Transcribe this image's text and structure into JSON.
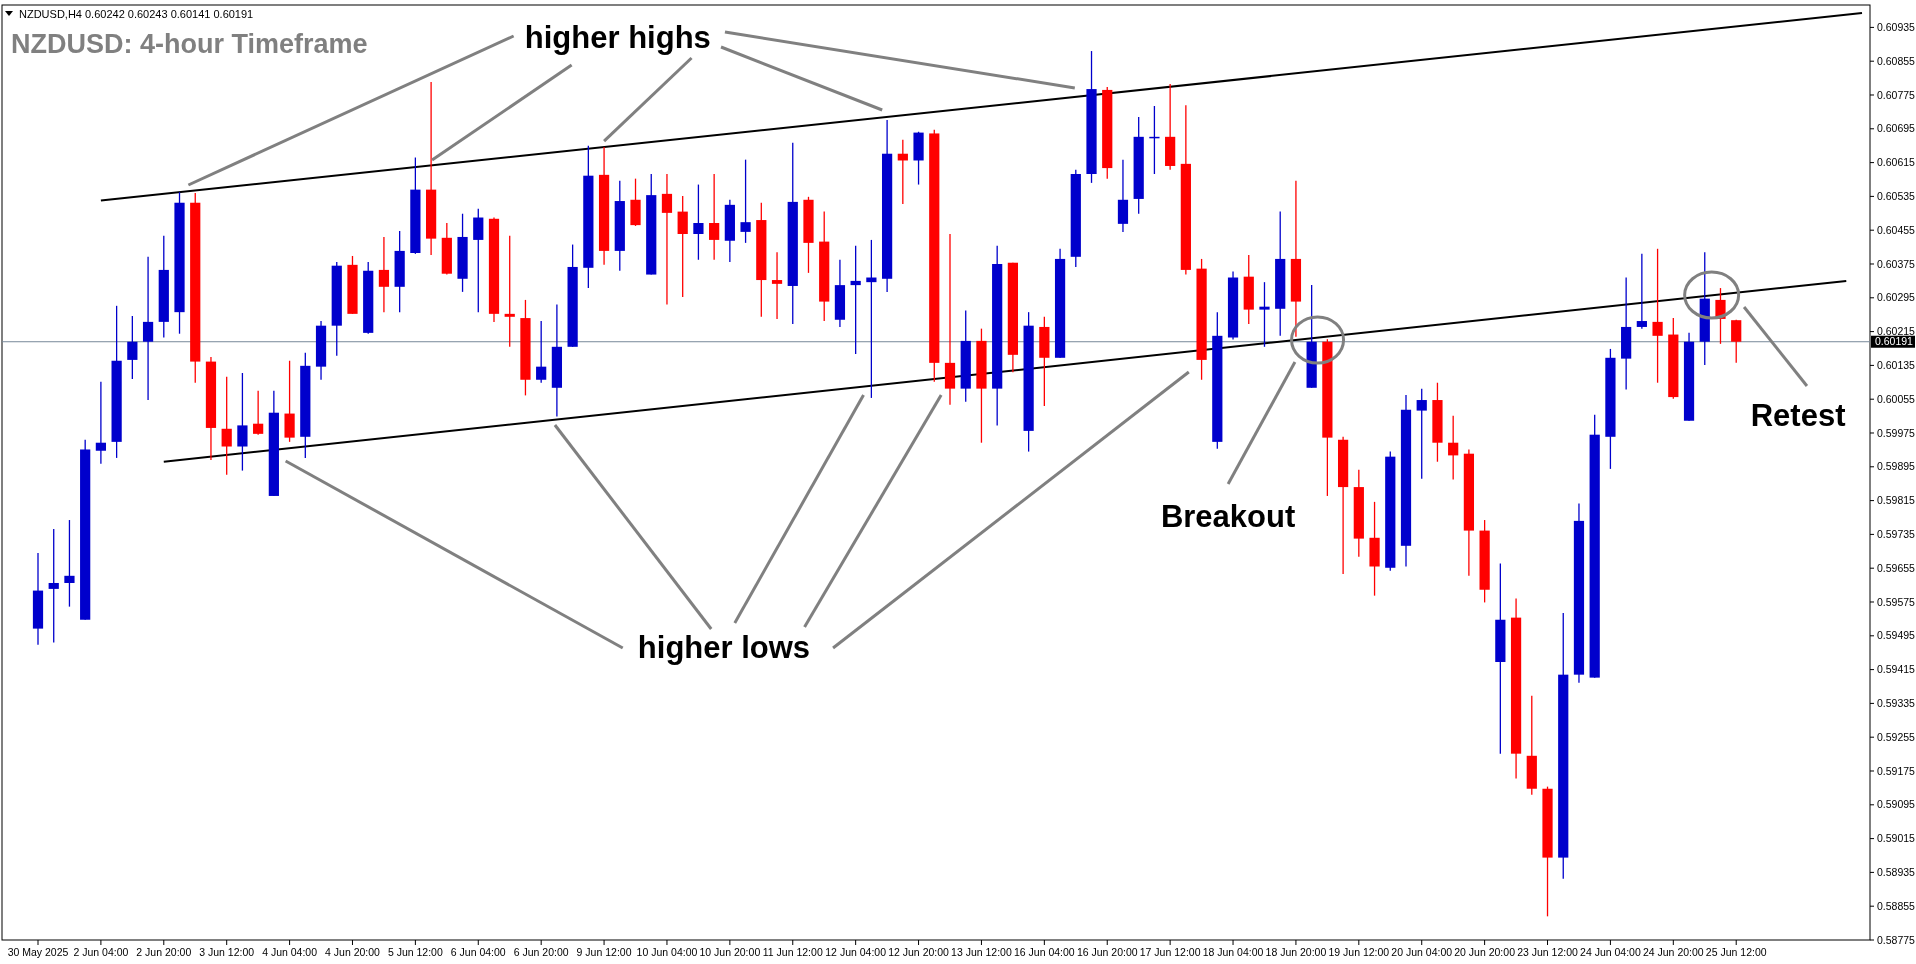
{
  "chart_data": {
    "type": "candlestick",
    "title": "NZDUSD: 4-hour Timeframe",
    "categories": [
      "30 May 2025",
      null,
      null,
      null,
      "2 Jun 04:00",
      null,
      null,
      null,
      "2 Jun 20:00",
      null,
      null,
      null,
      "3 Jun 12:00",
      null,
      null,
      null,
      "4 Jun 04:00",
      null,
      null,
      null,
      "4 Jun 20:00",
      null,
      null,
      null,
      "5 Jun 12:00",
      null,
      null,
      null,
      "6 Jun 04:00",
      null,
      null,
      null,
      "6 Jun 20:00",
      null,
      null,
      null,
      "9 Jun 12:00",
      null,
      null,
      null,
      "10 Jun 04:00",
      null,
      null,
      null,
      "10 Jun 20:00",
      null,
      null,
      null,
      "11 Jun 12:00",
      null,
      null,
      null,
      "12 Jun 04:00",
      null,
      null,
      null,
      "12 Jun 20:00",
      null,
      null,
      null,
      "13 Jun 12:00",
      null,
      null,
      null,
      "16 Jun 04:00",
      null,
      null,
      null,
      "16 Jun 20:00",
      null,
      null,
      null,
      "17 Jun 12:00",
      null,
      null,
      null,
      "18 Jun 04:00",
      null,
      null,
      null,
      "18 Jun 20:00",
      null,
      null,
      null,
      "19 Jun 12:00",
      null,
      null,
      null,
      "20 Jun 04:00",
      null,
      null,
      null,
      "20 Jun 20:00",
      null,
      null,
      null,
      "23 Jun 12:00",
      null,
      null,
      null,
      "24 Jun 04:00",
      null,
      null,
      null,
      "24 Jun 20:00",
      null,
      null,
      null,
      "25 Jun 12:00",
      null,
      null,
      null,
      null,
      null,
      null,
      null,
      null
    ],
    "ohlc": [
      [
        0.59512,
        0.59691,
        0.59474,
        0.59602
      ],
      [
        0.59606,
        0.59748,
        0.59479,
        0.5962
      ],
      [
        0.5962,
        0.59769,
        0.59564,
        0.59637
      ],
      [
        0.59533,
        0.59959,
        0.59533,
        0.59936
      ],
      [
        0.59933,
        0.60096,
        0.59902,
        0.59952
      ],
      [
        0.59954,
        0.60276,
        0.59916,
        0.60146
      ],
      [
        0.60148,
        0.60252,
        0.60103,
        0.60191
      ],
      [
        0.60191,
        0.60392,
        0.60053,
        0.60238
      ],
      [
        0.60238,
        0.60442,
        0.60201,
        0.60361
      ],
      [
        0.60261,
        0.60545,
        0.6021,
        0.6052
      ],
      [
        0.6052,
        0.60543,
        0.60094,
        0.60144
      ],
      [
        0.60144,
        0.60155,
        0.59911,
        0.59987
      ],
      [
        0.59985,
        0.60108,
        0.59876,
        0.59943
      ],
      [
        0.59943,
        0.60117,
        0.59886,
        0.59993
      ],
      [
        0.59997,
        0.60075,
        0.59971,
        0.59973
      ],
      [
        0.59826,
        0.60075,
        0.59826,
        0.60023
      ],
      [
        0.60021,
        0.60146,
        0.59954,
        0.59964
      ],
      [
        0.59966,
        0.60165,
        0.59916,
        0.60134
      ],
      [
        0.60132,
        0.6024,
        0.60101,
        0.60229
      ],
      [
        0.60229,
        0.6038,
        0.60158,
        0.60371
      ],
      [
        0.60373,
        0.60394,
        0.60257,
        0.60257
      ],
      [
        0.60212,
        0.6038,
        0.6021,
        0.60359
      ],
      [
        0.60361,
        0.60439,
        0.60261,
        0.60321
      ],
      [
        0.60321,
        0.60453,
        0.60261,
        0.60406
      ],
      [
        0.60401,
        0.60627,
        0.60399,
        0.60551
      ],
      [
        0.60551,
        0.60806,
        0.60396,
        0.60435
      ],
      [
        0.60437,
        0.60472,
        0.6035,
        0.60352
      ],
      [
        0.6034,
        0.60494,
        0.60309,
        0.60439
      ],
      [
        0.60432,
        0.60506,
        0.60261,
        0.60485
      ],
      [
        0.60482,
        0.60485,
        0.60238,
        0.60257
      ],
      [
        0.60257,
        0.60442,
        0.60179,
        0.6025
      ],
      [
        0.60247,
        0.6029,
        0.60064,
        0.60101
      ],
      [
        0.60101,
        0.6024,
        0.60094,
        0.60132
      ],
      [
        0.60082,
        0.60279,
        0.60014,
        0.60179
      ],
      [
        0.60179,
        0.60421,
        0.60179,
        0.60368
      ],
      [
        0.60366,
        0.60655,
        0.60318,
        0.60584
      ],
      [
        0.60586,
        0.60652,
        0.60373,
        0.60406
      ],
      [
        0.60406,
        0.60572,
        0.60359,
        0.60524
      ],
      [
        0.60527,
        0.60577,
        0.60465,
        0.60467
      ],
      [
        0.6035,
        0.60588,
        0.6035,
        0.60538
      ],
      [
        0.60541,
        0.60588,
        0.60279,
        0.60496
      ],
      [
        0.60499,
        0.60536,
        0.60297,
        0.60446
      ],
      [
        0.60446,
        0.60563,
        0.60385,
        0.60472
      ],
      [
        0.60472,
        0.60588,
        0.60385,
        0.60432
      ],
      [
        0.6043,
        0.60527,
        0.6038,
        0.60515
      ],
      [
        0.60451,
        0.60622,
        0.60425,
        0.60474
      ],
      [
        0.60479,
        0.6052,
        0.6025,
        0.60337
      ],
      [
        0.60337,
        0.60403,
        0.60245,
        0.60328
      ],
      [
        0.60323,
        0.60662,
        0.60233,
        0.60522
      ],
      [
        0.60527,
        0.60534,
        0.60354,
        0.60425
      ],
      [
        0.60428,
        0.60499,
        0.6024,
        0.60286
      ],
      [
        0.60243,
        0.60385,
        0.60226,
        0.60325
      ],
      [
        0.60325,
        0.60418,
        0.60162,
        0.60335
      ],
      [
        0.60332,
        0.60432,
        0.60058,
        0.60343
      ],
      [
        0.6034,
        0.60716,
        0.60309,
        0.60636
      ],
      [
        0.60636,
        0.60669,
        0.60517,
        0.6062
      ],
      [
        0.6062,
        0.60688,
        0.60563,
        0.60686
      ],
      [
        0.60684,
        0.60693,
        0.60096,
        0.60141
      ],
      [
        0.60141,
        0.60446,
        0.60042,
        0.6008
      ],
      [
        0.6008,
        0.60265,
        0.60049,
        0.60193
      ],
      [
        0.60193,
        0.60222,
        0.59952,
        0.6008
      ],
      [
        0.6008,
        0.60418,
        0.59993,
        0.60375
      ],
      [
        0.60378,
        0.60378,
        0.60119,
        0.6016
      ],
      [
        0.5998,
        0.60261,
        0.59931,
        0.60229
      ],
      [
        0.60226,
        0.6025,
        0.60039,
        0.60153
      ],
      [
        0.60153,
        0.60411,
        0.60153,
        0.60387
      ],
      [
        0.60392,
        0.60598,
        0.60368,
        0.60588
      ],
      [
        0.60588,
        0.60879,
        0.60567,
        0.60789
      ],
      [
        0.60787,
        0.60794,
        0.60577,
        0.60602
      ],
      [
        0.6047,
        0.60622,
        0.60451,
        0.60527
      ],
      [
        0.60529,
        0.60723,
        0.60494,
        0.60676
      ],
      [
        0.60673,
        0.60749,
        0.60588,
        0.60676
      ],
      [
        0.60676,
        0.60801,
        0.60598,
        0.60607
      ],
      [
        0.60612,
        0.60751,
        0.6035,
        0.60361
      ],
      [
        0.60364,
        0.60387,
        0.60101,
        0.60148
      ],
      [
        0.59954,
        0.60261,
        0.59938,
        0.60205
      ],
      [
        0.60201,
        0.60357,
        0.60196,
        0.60343
      ],
      [
        0.60345,
        0.60396,
        0.60233,
        0.60267
      ],
      [
        0.60267,
        0.60332,
        0.60179,
        0.60274
      ],
      [
        0.60269,
        0.60499,
        0.60205,
        0.60387
      ],
      [
        0.60387,
        0.60572,
        0.60203,
        0.60286
      ],
      [
        0.60082,
        0.60325,
        0.60082,
        0.60191
      ],
      [
        0.60191,
        0.60197,
        0.59826,
        0.59964
      ],
      [
        0.59959,
        0.59966,
        0.59641,
        0.59847
      ],
      [
        0.59847,
        0.59888,
        0.59682,
        0.59725
      ],
      [
        0.59727,
        0.59812,
        0.5959,
        0.59659
      ],
      [
        0.59656,
        0.59931,
        0.59649,
        0.59919
      ],
      [
        0.59708,
        0.60065,
        0.59659,
        0.6003
      ],
      [
        0.60028,
        0.6008,
        0.59867,
        0.60053
      ],
      [
        0.60053,
        0.60094,
        0.59907,
        0.59952
      ],
      [
        0.59952,
        0.60016,
        0.59865,
        0.59922
      ],
      [
        0.59926,
        0.59936,
        0.59637,
        0.59744
      ],
      [
        0.59744,
        0.59769,
        0.59574,
        0.59604
      ],
      [
        0.59433,
        0.59666,
        0.59216,
        0.59533
      ],
      [
        0.59538,
        0.59583,
        0.59157,
        0.59216
      ],
      [
        0.59211,
        0.59353,
        0.59119,
        0.59133
      ],
      [
        0.59133,
        0.59138,
        0.58831,
        0.5897
      ],
      [
        0.5897,
        0.59549,
        0.5892,
        0.59403
      ],
      [
        0.59403,
        0.59808,
        0.59384,
        0.59767
      ],
      [
        0.59396,
        0.60018,
        0.59396,
        0.59971
      ],
      [
        0.59966,
        0.60174,
        0.5989,
        0.60153
      ],
      [
        0.60151,
        0.60343,
        0.60078,
        0.60226
      ],
      [
        0.60226,
        0.60399,
        0.60222,
        0.6024
      ],
      [
        0.60238,
        0.60411,
        0.60094,
        0.60205
      ],
      [
        0.60208,
        0.60247,
        0.60056,
        0.6006
      ],
      [
        0.60004,
        0.60212,
        0.60004,
        0.60191
      ],
      [
        0.60191,
        0.60403,
        0.60136,
        0.60293
      ],
      [
        0.6029,
        0.60318,
        0.60186,
        0.60245
      ],
      [
        0.60242,
        0.60243,
        0.60141,
        0.60191
      ],
      null,
      null,
      null,
      null,
      null,
      null,
      null,
      null
    ],
    "colors": [
      "#0000cc",
      "#0000cc",
      "#0000cc",
      "#0000cc",
      "#0000cc",
      "#0000cc",
      "#0000cc",
      "#0000cc",
      "#0000cc",
      "#0000cc",
      "#ff0000",
      "#ff0000",
      "#ff0000",
      "#0000cc",
      "#ff0000",
      "#0000cc",
      "#ff0000",
      "#0000cc",
      "#0000cc",
      "#0000cc",
      "#ff0000",
      "#0000cc",
      "#ff0000",
      "#0000cc",
      "#0000cc",
      "#ff0000",
      "#ff0000",
      "#0000cc",
      "#0000cc",
      "#ff0000",
      "#ff0000",
      "#ff0000",
      "#0000cc",
      "#0000cc",
      "#0000cc",
      "#0000cc",
      "#ff0000",
      "#0000cc",
      "#ff0000",
      "#0000cc",
      "#ff0000",
      "#ff0000",
      "#0000cc",
      "#ff0000",
      "#0000cc",
      "#0000cc",
      "#ff0000",
      "#ff0000",
      "#0000cc",
      "#ff0000",
      "#ff0000",
      "#0000cc",
      "#0000cc",
      "#0000cc",
      "#0000cc",
      "#ff0000",
      "#0000cc",
      "#ff0000",
      "#ff0000",
      "#0000cc",
      "#ff0000",
      "#0000cc",
      "#ff0000",
      "#0000cc",
      "#ff0000",
      "#0000cc",
      "#0000cc",
      "#0000cc",
      "#ff0000",
      "#0000cc",
      "#0000cc",
      "#0000cc",
      "#ff0000",
      "#ff0000",
      "#ff0000",
      "#0000cc",
      "#0000cc",
      "#ff0000",
      "#0000cc",
      "#0000cc",
      "#ff0000",
      "#0000cc",
      "#ff0000",
      "#ff0000",
      "#ff0000",
      "#ff0000",
      "#0000cc",
      "#0000cc",
      "#0000cc",
      "#ff0000",
      "#ff0000",
      "#ff0000",
      "#ff0000",
      "#0000cc",
      "#ff0000",
      "#ff0000",
      "#ff0000",
      "#0000cc",
      "#0000cc",
      "#0000cc",
      "#0000cc",
      "#0000cc",
      "#0000cc",
      "#ff0000",
      "#ff0000",
      "#0000cc",
      "#0000cc",
      "#ff0000",
      "#ff0000",
      null,
      null,
      null,
      null,
      null,
      null,
      null,
      null
    ],
    "series": [
      {
        "type": "line",
        "color": "#000000",
        "values": [
          null,
          null,
          null,
          null,
          0.60525,
          null,
          null,
          null,
          null,
          null,
          null,
          null,
          null,
          null,
          null,
          null,
          null,
          null,
          null,
          null,
          null,
          null,
          null,
          null,
          null,
          null,
          null,
          null,
          null,
          null,
          null,
          null,
          null,
          null,
          null,
          null,
          null,
          null,
          null,
          null,
          null,
          null,
          null,
          null,
          null,
          null,
          null,
          null,
          null,
          null,
          null,
          null,
          null,
          null,
          null,
          null,
          null,
          null,
          null,
          null,
          null,
          null,
          null,
          null,
          null,
          null,
          null,
          null,
          null,
          null,
          null,
          null,
          null,
          null,
          null,
          null,
          null,
          null,
          null,
          null,
          null,
          null,
          null,
          null,
          null,
          null,
          null,
          null,
          null,
          null,
          null,
          null,
          null,
          null,
          null,
          null,
          null,
          null,
          null,
          null,
          null,
          null,
          null,
          null,
          null,
          null,
          null,
          null,
          null,
          null,
          null,
          null,
          null,
          null,
          null,
          null,
          0.60969
        ]
      },
      {
        "type": "line",
        "color": "#000000",
        "values": [
          null,
          null,
          null,
          null,
          null,
          null,
          null,
          null,
          0.59907,
          null,
          null,
          null,
          null,
          null,
          null,
          null,
          null,
          null,
          null,
          null,
          null,
          null,
          null,
          null,
          null,
          null,
          null,
          null,
          null,
          null,
          null,
          null,
          null,
          null,
          null,
          null,
          null,
          null,
          null,
          null,
          null,
          null,
          null,
          null,
          null,
          null,
          null,
          null,
          null,
          null,
          null,
          null,
          null,
          null,
          null,
          null,
          null,
          null,
          null,
          null,
          null,
          null,
          null,
          null,
          null,
          null,
          null,
          null,
          null,
          null,
          null,
          null,
          null,
          null,
          null,
          null,
          null,
          null,
          null,
          null,
          null,
          null,
          null,
          null,
          null,
          null,
          null,
          null,
          null,
          null,
          null,
          null,
          null,
          null,
          null,
          null,
          null,
          null,
          null,
          null,
          null,
          null,
          null,
          null,
          null,
          null,
          null,
          null,
          null,
          null,
          null,
          null,
          null,
          null,
          null,
          0.60335,
          null
        ]
      }
    ],
    "ylim": [
      0.58775,
      0.60988
    ],
    "yticks": [
      0.58775,
      0.58855,
      0.58935,
      0.59015,
      0.59095,
      0.59175,
      0.59255,
      0.59335,
      0.59415,
      0.59495,
      0.59575,
      0.59655,
      0.59735,
      0.59815,
      0.59895,
      0.59975,
      0.60055,
      0.60135,
      0.60215,
      0.60295,
      0.60375,
      0.60455,
      0.60535,
      0.60615,
      0.60695,
      0.60775,
      0.60855,
      0.60935
    ],
    "ref_lines": [
      {
        "axis": "y",
        "value": 0.60191,
        "label": "0.60191",
        "color": "#778899"
      }
    ],
    "annotations": [
      "NZDUSD,H4 0.60242 0.60243 0.60141 0.60191",
      {
        "text": "higher highs",
        "x": "9 Jun 12:00",
        "y": 0.60666
      },
      "higher lows",
      "Breakout",
      "Retest"
    ]
  }
}
